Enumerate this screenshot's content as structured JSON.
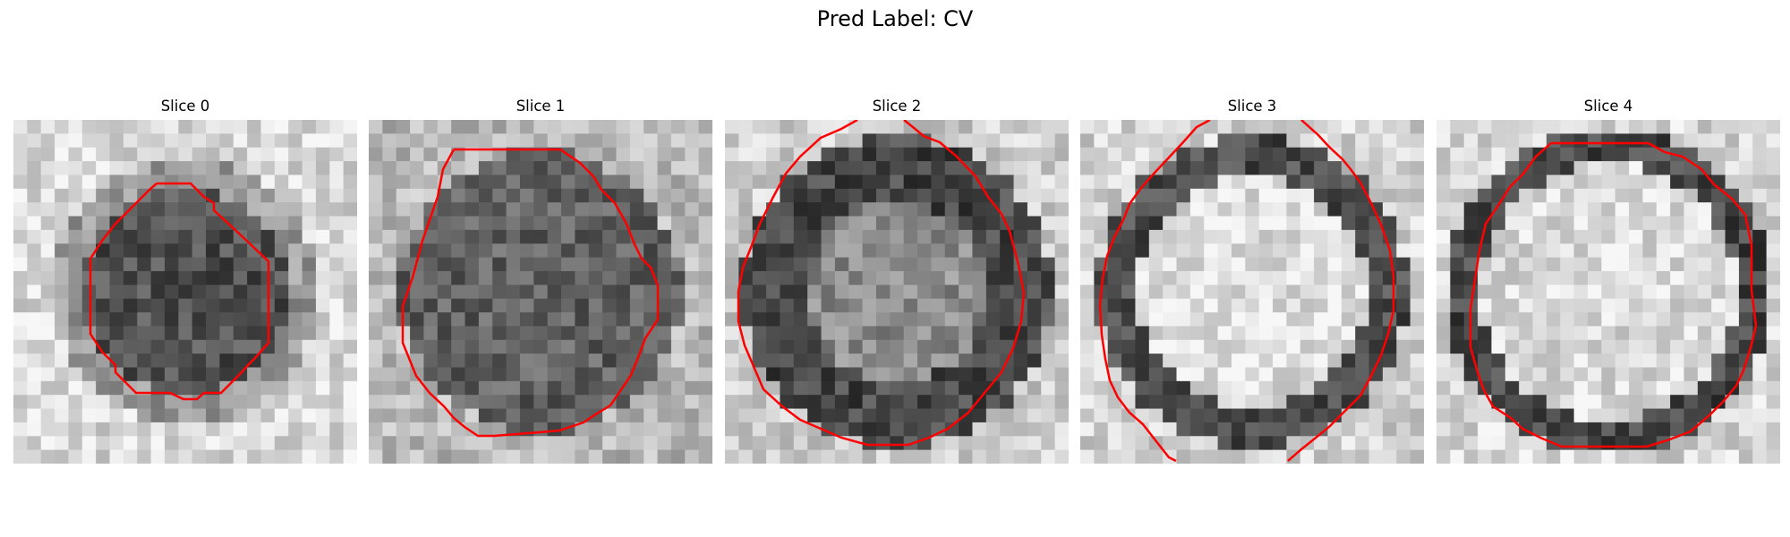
{
  "figure": {
    "suptitle": "Pred Label: CV"
  },
  "slices": [
    {
      "title": "Slice 0",
      "kind": "dark-blob"
    },
    {
      "title": "Slice 1",
      "kind": "dark-blob-large"
    },
    {
      "title": "Slice 2",
      "kind": "dark-ring-filled"
    },
    {
      "title": "Slice 3",
      "kind": "bright-center-ring"
    },
    {
      "title": "Slice 4",
      "kind": "bright-center-ring-thin"
    }
  ],
  "colors": {
    "contour": "#ff0000",
    "background": "#ffffff"
  }
}
